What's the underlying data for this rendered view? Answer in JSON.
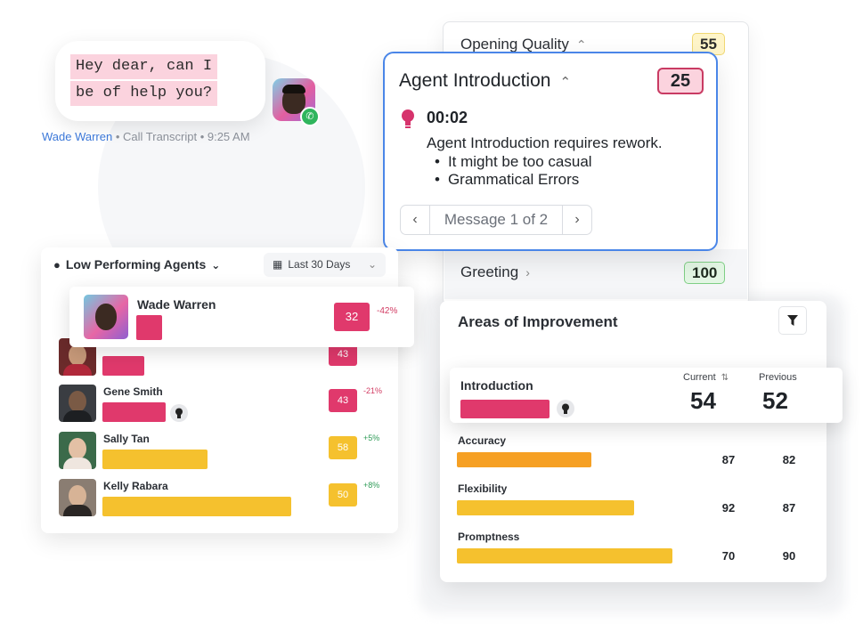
{
  "chat": {
    "lines": [
      "Hey dear, can I",
      "be of help you?"
    ],
    "meta_name": "Wade Warren",
    "meta_rest": " • Call Transcript • 9:25 AM"
  },
  "scorecard": {
    "opening_label": "Opening Quality",
    "opening_score": "55",
    "greeting_label": "Greeting",
    "greeting_score": "100"
  },
  "intro": {
    "title": "Agent Introduction",
    "score": "25",
    "time": "00:02",
    "message": "Agent Introduction requires rework.",
    "bullets": [
      "It might be too casual",
      "Grammatical Errors"
    ],
    "pager_label": "Message 1 of 2"
  },
  "lpa": {
    "title": "Low Performing Agents",
    "date_range": "Last 30 Days",
    "featured": {
      "name": "Wade Warren",
      "score": "32",
      "delta": "-42%"
    },
    "agents": [
      {
        "name": "",
        "score": "43",
        "delta": ""
      },
      {
        "name": "Gene Smith",
        "score": "43",
        "delta": "-21%"
      },
      {
        "name": "Sally Tan",
        "score": "58",
        "delta": "+5%"
      },
      {
        "name": "Kelly Rabara",
        "score": "50",
        "delta": "+8%"
      }
    ]
  },
  "aoi": {
    "title": "Areas of Improvement",
    "header_current": "Current",
    "header_previous": "Previous",
    "highlight": {
      "label": "Introduction",
      "current": "54",
      "previous": "52"
    },
    "rows": [
      {
        "label": "Accuracy",
        "current": "87",
        "previous": "82"
      },
      {
        "label": "Flexibility",
        "current": "92",
        "previous": "87"
      },
      {
        "label": "Promptness",
        "current": "70",
        "previous": "90"
      }
    ]
  },
  "colors": {
    "brand_blue": "#4a86e8",
    "pink": "#e0396c",
    "yellow": "#f5c12e",
    "orange": "#f6a024"
  }
}
